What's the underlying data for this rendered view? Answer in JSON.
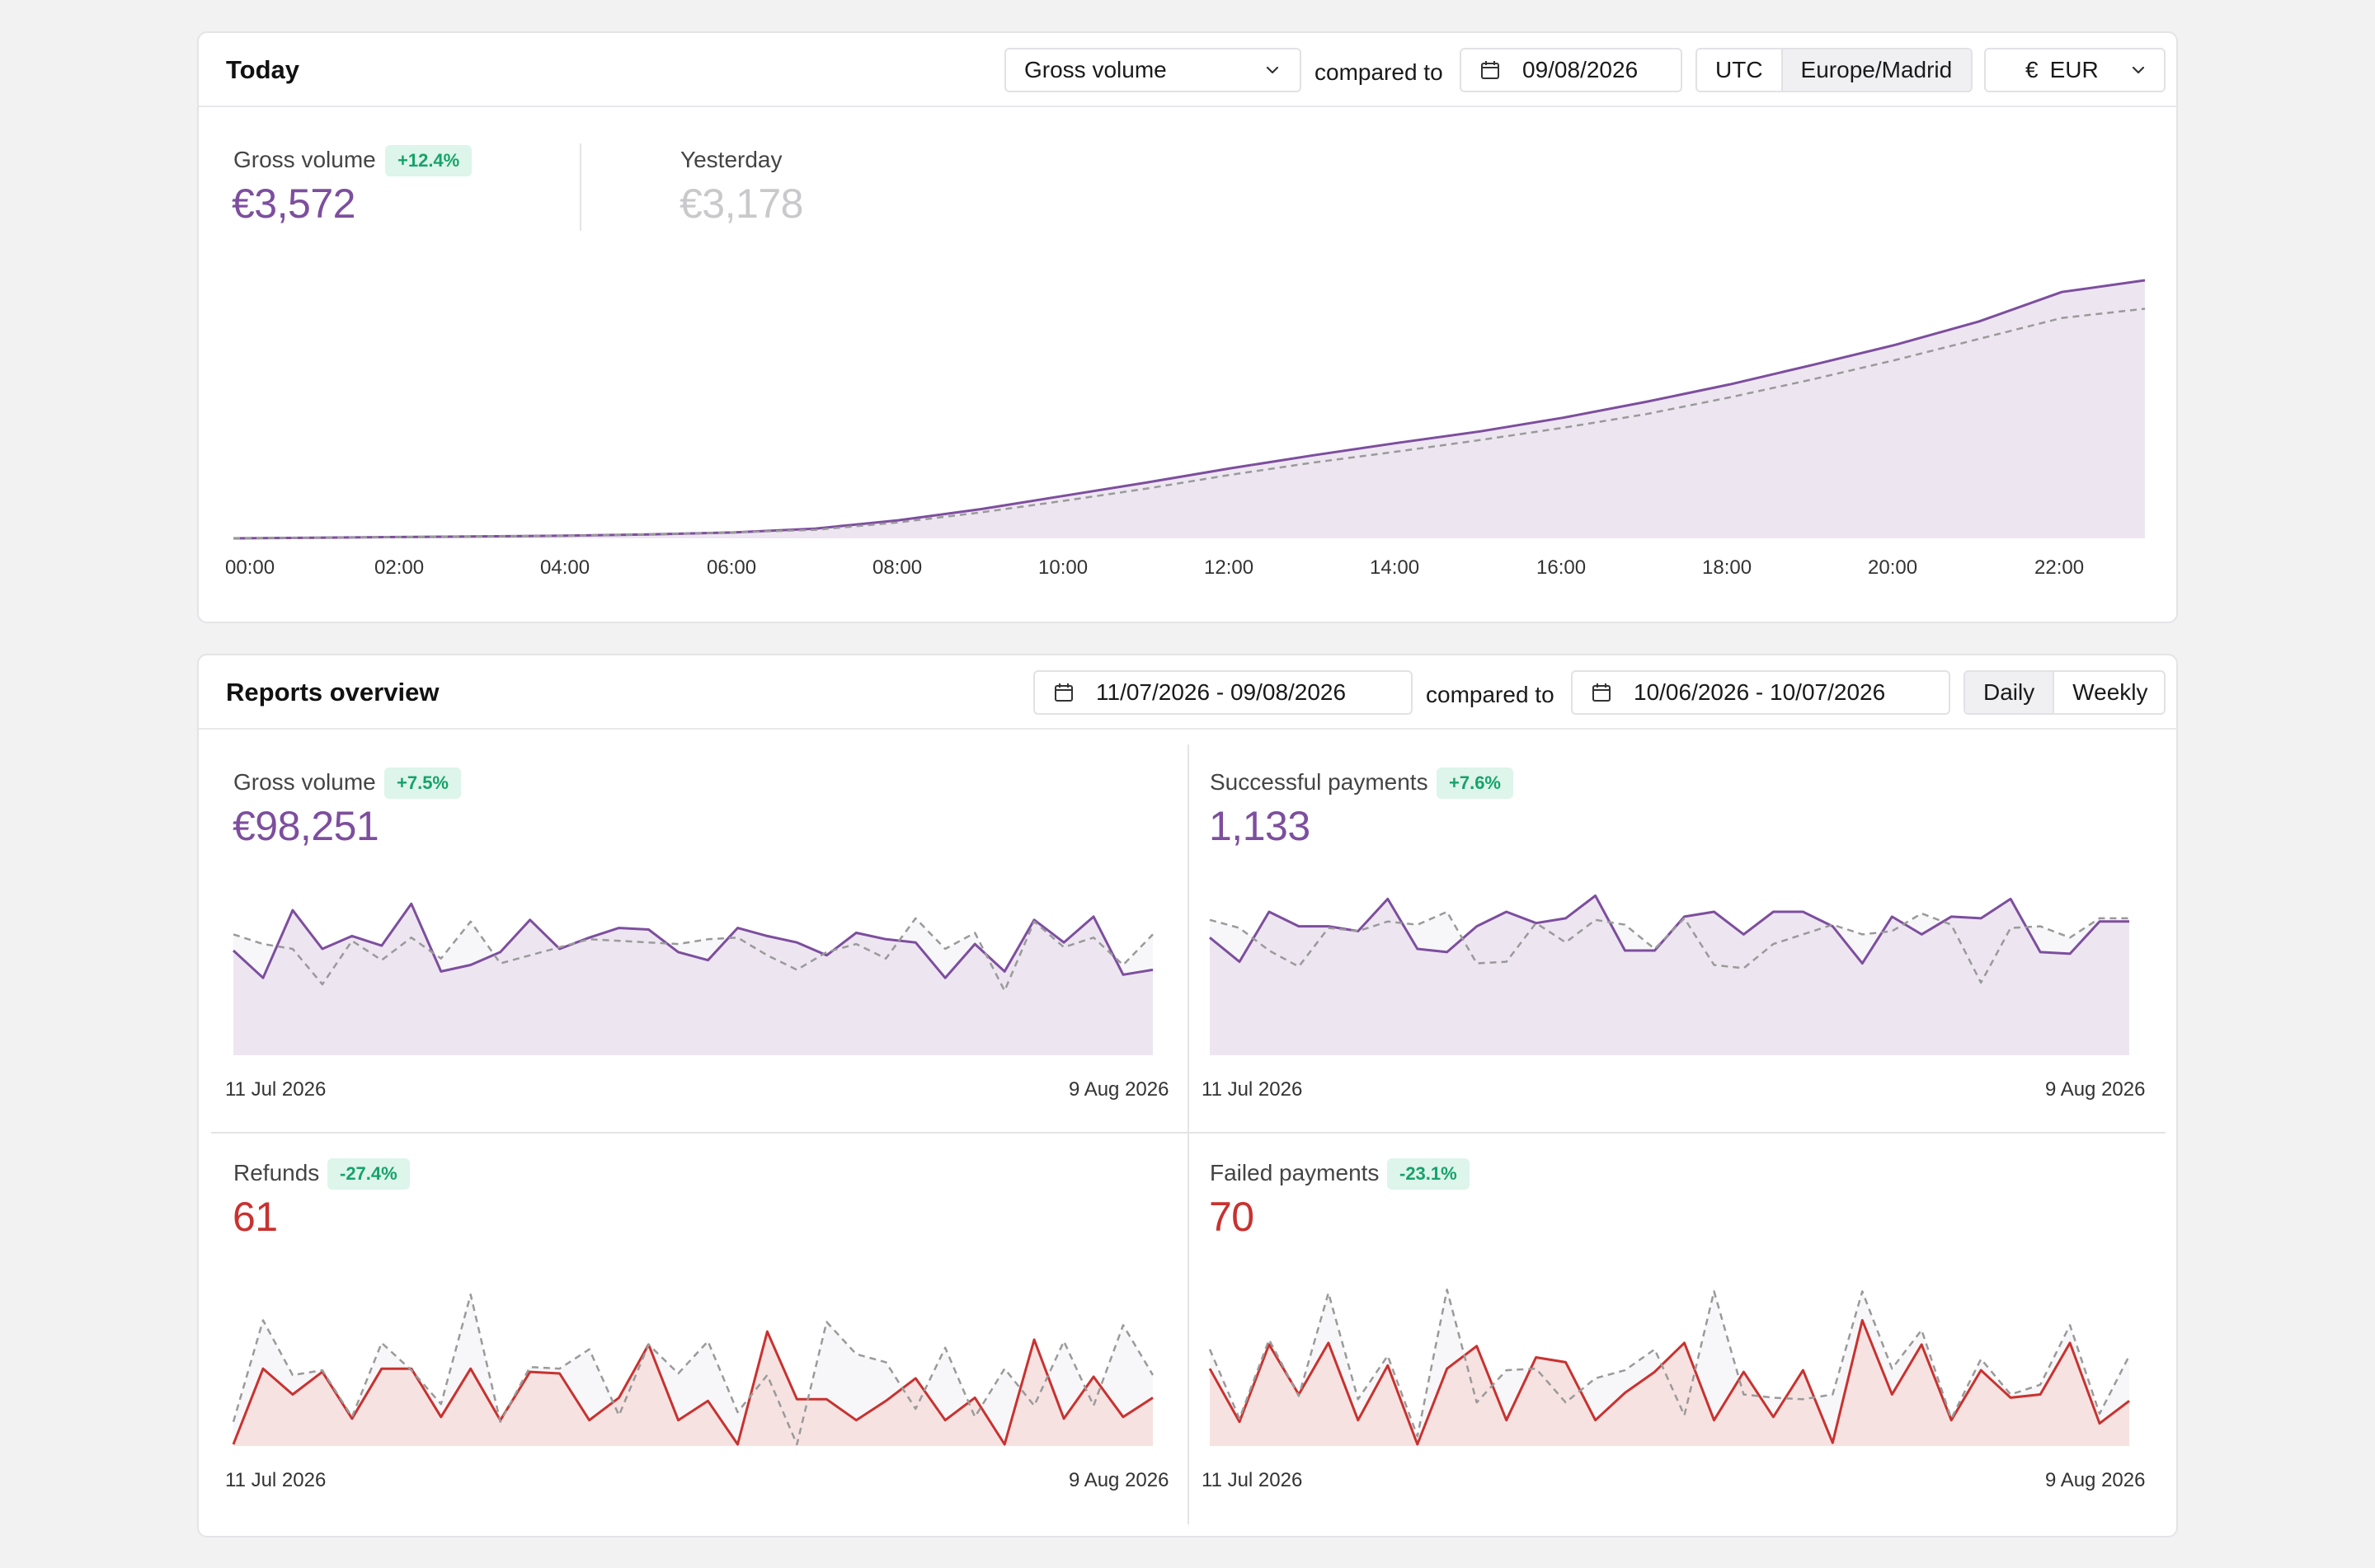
{
  "colors": {
    "purple": "#7d4e9e",
    "purple_fill": "#ede6f1",
    "red": "#c8322f",
    "red_fill": "#f7e2e2",
    "compare": "#9a9a9a",
    "badge_text": "#17a26b",
    "badge_bg": "#ddf5ea"
  },
  "today": {
    "title": "Today",
    "metric_select": {
      "value": "Gross volume",
      "icon": "chevron-down-icon"
    },
    "compared_to_label": "compared to",
    "compare_date": {
      "value": "09/08/2026",
      "icon": "calendar-icon"
    },
    "timezone_options": [
      {
        "label": "UTC",
        "active": false
      },
      {
        "label": "Europe/Madrid",
        "active": true
      }
    ],
    "currency": {
      "symbol": "€",
      "value": "EUR",
      "icon": "chevron-down-icon"
    },
    "primary": {
      "label": "Gross volume",
      "change": "+12.4%",
      "value": "€3,572"
    },
    "secondary": {
      "label": "Yesterday",
      "value": "€3,178"
    },
    "chart_data": {
      "type": "area",
      "x_ticks": [
        "00:00",
        "02:00",
        "04:00",
        "06:00",
        "08:00",
        "10:00",
        "12:00",
        "14:00",
        "16:00",
        "18:00",
        "20:00",
        "22:00"
      ],
      "x_hours": [
        0,
        1,
        2,
        3,
        4,
        5,
        6,
        7,
        8,
        9,
        10,
        11,
        12,
        13,
        14,
        15,
        16,
        17,
        18,
        19,
        20,
        21,
        22,
        23
      ],
      "series": [
        {
          "name": "Gross volume",
          "style": "solid",
          "values": [
            0,
            9,
            18,
            27,
            36,
            55,
            81,
            135,
            250,
            405,
            590,
            775,
            970,
            1150,
            1320,
            1480,
            1670,
            1890,
            2130,
            2400,
            2680,
            3000,
            3410,
            3572
          ]
        },
        {
          "name": "Yesterday",
          "style": "dashed",
          "values": [
            0,
            9,
            18,
            27,
            36,
            55,
            81,
            118,
            220,
            360,
            520,
            690,
            880,
            1050,
            1200,
            1360,
            1530,
            1720,
            1950,
            2200,
            2470,
            2760,
            3050,
            3178
          ]
        }
      ],
      "ylim": [
        0,
        3572
      ]
    }
  },
  "reports": {
    "title": "Reports overview",
    "date_range": {
      "value": "11/07/2026 - 09/08/2026",
      "icon": "calendar-icon"
    },
    "compared_to_label": "compared to",
    "compare_range": {
      "value": "10/06/2026 - 10/07/2026",
      "icon": "calendar-icon"
    },
    "granularity": [
      {
        "label": "Daily",
        "active": true
      },
      {
        "label": "Weekly",
        "active": false
      }
    ],
    "panels": [
      {
        "label": "Gross volume",
        "change": "+7.5%",
        "value": "€98,251",
        "tone": "purple",
        "start_label": "11 Jul 2026",
        "end_label": "9 Aug 2026",
        "chart_data": {
          "type": "area",
          "ylim": [
            0,
            110
          ],
          "series": [
            {
              "name": "Gross volume",
              "style": "solid",
              "values": [
                65,
                48,
                90,
                66,
                74,
                68,
                94,
                52,
                56,
                64,
                84,
                66,
                73,
                79,
                78,
                64,
                59,
                79,
                74,
                70,
                62,
                76,
                72,
                70,
                48,
                69,
                52,
                84,
                70,
                86,
                50,
                53
              ]
            },
            {
              "name": "Compare",
              "style": "dashed",
              "values": [
                75,
                69,
                66,
                44,
                71,
                59,
                73,
                60,
                83,
                57,
                62,
                67,
                72,
                71,
                70,
                69,
                72,
                73,
                62,
                53,
                64,
                69,
                60,
                85,
                66,
                76,
                40,
                83,
                67,
                73,
                56,
                75
              ]
            }
          ]
        }
      },
      {
        "label": "Successful payments",
        "change": "+7.6%",
        "value": "1,133",
        "tone": "purple",
        "start_label": "11 Jul 2026",
        "end_label": "9 Aug 2026",
        "chart_data": {
          "type": "area",
          "ylim": [
            0,
            110
          ],
          "series": [
            {
              "name": "Successful payments",
              "style": "solid",
              "values": [
                73,
                58,
                89,
                80,
                80,
                77,
                97,
                66,
                64,
                80,
                89,
                82,
                85,
                99,
                65,
                65,
                86,
                89,
                75,
                89,
                89,
                80,
                57,
                86,
                75,
                86,
                85,
                97,
                64,
                63,
                83,
                83
              ]
            },
            {
              "name": "Compare",
              "style": "dashed",
              "values": [
                84,
                79,
                65,
                55,
                79,
                77,
                83,
                81,
                89,
                57,
                58,
                82,
                70,
                84,
                81,
                66,
                85,
                56,
                54,
                69,
                75,
                81,
                75,
                77,
                88,
                81,
                45,
                79,
                80,
                73,
                85,
                85
              ]
            }
          ]
        }
      },
      {
        "label": "Refunds",
        "change": "-27.4%",
        "value": "61",
        "tone": "red",
        "start_label": "11 Jul 2026",
        "end_label": "9 Aug 2026",
        "chart_data": {
          "type": "area",
          "ylim": [
            0,
            110
          ],
          "series": [
            {
              "name": "Refunds",
              "style": "solid",
              "values": [
                1,
                48,
                32,
                46,
                17,
                48,
                48,
                18,
                48,
                16,
                46,
                45,
                16,
                30,
                63,
                16,
                28,
                1,
                71,
                29,
                29,
                16,
                28,
                42,
                16,
                30,
                1,
                66,
                17,
                43,
                18,
                30
              ]
            },
            {
              "name": "Compare",
              "style": "dashed",
              "values": [
                15,
                78,
                44,
                47,
                18,
                64,
                47,
                26,
                94,
                15,
                49,
                48,
                60,
                19,
                63,
                45,
                65,
                21,
                44,
                1,
                77,
                57,
                52,
                23,
                61,
                18,
                48,
                25,
                65,
                25,
                75,
                44
              ]
            }
          ]
        }
      },
      {
        "label": "Failed payments",
        "change": "-23.1%",
        "value": "70",
        "tone": "red",
        "start_label": "11 Jul 2026",
        "end_label": "9 Aug 2026",
        "chart_data": {
          "type": "area",
          "ylim": [
            0,
            110
          ],
          "series": [
            {
              "name": "Failed payments",
              "style": "solid",
              "values": [
                48,
                15,
                63,
                32,
                64,
                16,
                50,
                1,
                48,
                62,
                16,
                55,
                52,
                16,
                33,
                46,
                64,
                16,
                46,
                18,
                47,
                2,
                78,
                32,
                63,
                16,
                47,
                30,
                32,
                64,
                14,
                28
              ]
            },
            {
              "name": "Compare",
              "style": "dashed",
              "values": [
                60,
                17,
                66,
                31,
                95,
                29,
                56,
                6,
                97,
                27,
                47,
                48,
                27,
                42,
                47,
                60,
                19,
                96,
                32,
                30,
                29,
                32,
                96,
                48,
                72,
                17,
                54,
                32,
                38,
                75,
                20,
                56
              ]
            }
          ]
        }
      }
    ]
  }
}
